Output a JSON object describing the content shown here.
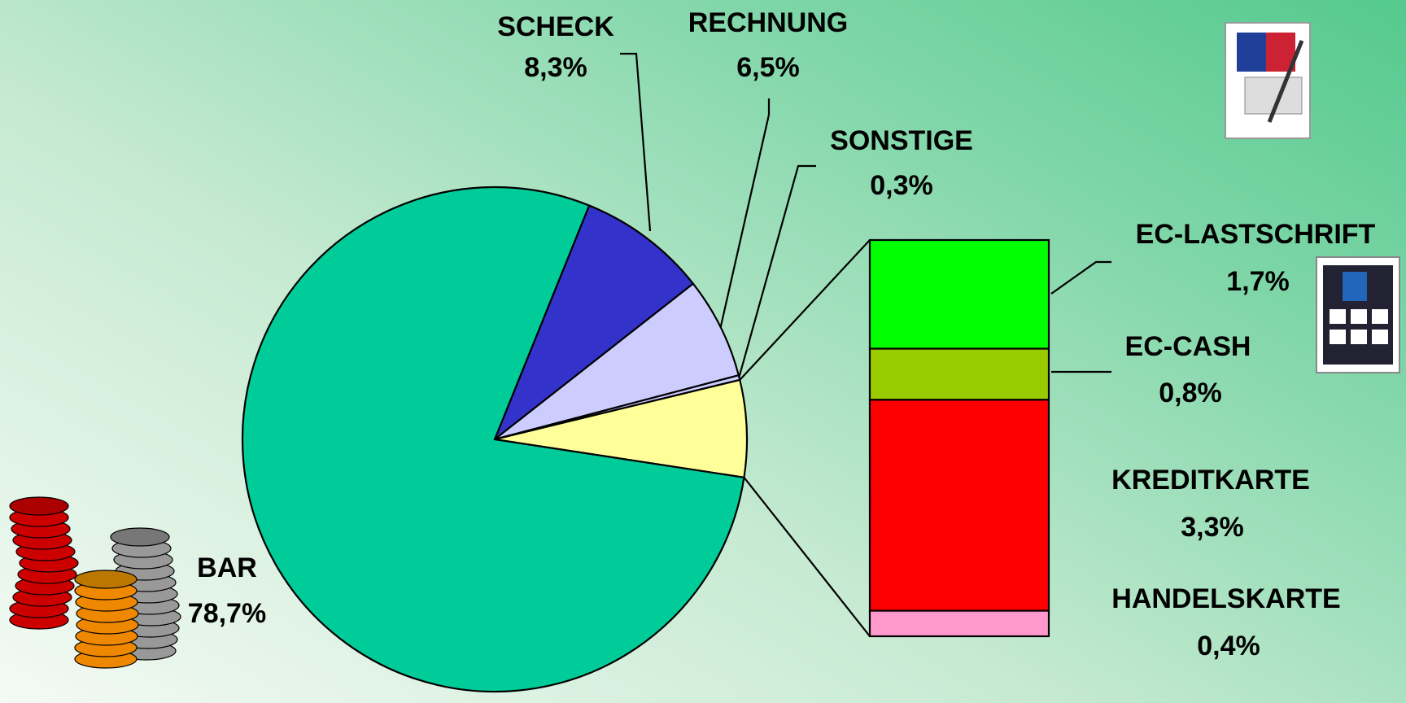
{
  "chart_data": {
    "type": "pie-of-bar",
    "pie": {
      "categories": [
        "SCHECK",
        "RECHNUNG",
        "SONSTIGE",
        "BAR"
      ],
      "values": [
        8.3,
        6.5,
        0.3,
        78.7
      ],
      "value_labels": [
        "8,3%",
        "6,5%",
        "0,3%",
        "78,7%"
      ],
      "colors": [
        "#3333cc",
        "#ccccff",
        "#ccccff",
        "#00cc99"
      ]
    },
    "bar": {
      "categories": [
        "EC-LASTSCHRIFT",
        "EC-CASH",
        "KREDITKARTE",
        "HANDELSKARTE"
      ],
      "values": [
        1.7,
        0.8,
        3.3,
        0.4
      ],
      "value_labels": [
        "1,7%",
        "0,8%",
        "3,3%",
        "0,4%"
      ],
      "colors": [
        "#00ff00",
        "#99cc00",
        "#ff0000",
        "#ff99cc"
      ],
      "wedge_color": "#ffff99"
    }
  }
}
